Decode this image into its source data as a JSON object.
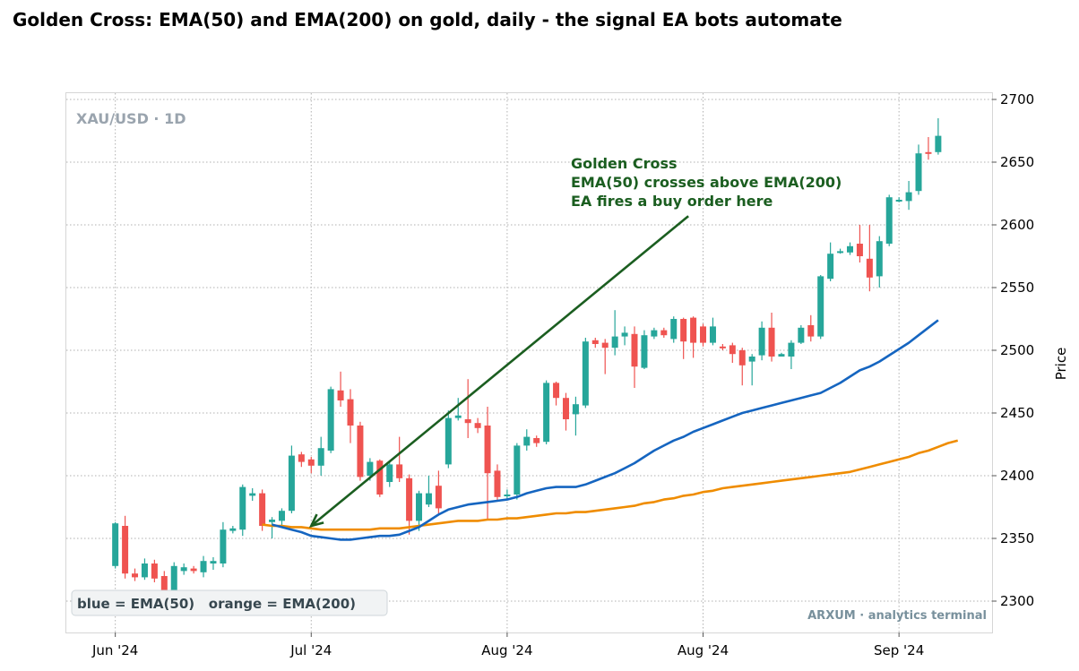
{
  "chart_data": {
    "type": "candlestick",
    "title": "Golden Cross: EMA(50) and EMA(200) on gold, daily - the signal EA bots automate",
    "ylabel": "Price",
    "xlabel": "",
    "ylim": [
      2275,
      2705
    ],
    "yticks": [
      2300,
      2350,
      2400,
      2450,
      2500,
      2550,
      2600,
      2650,
      2700
    ],
    "xticks": [
      {
        "day": 0,
        "label": "Jun '24"
      },
      {
        "day": 20,
        "label": "Jul '24"
      },
      {
        "day": 40,
        "label": "Aug '24"
      },
      {
        "day": 60,
        "label": "Aug '24"
      },
      {
        "day": 80,
        "label": "Sep '24"
      }
    ],
    "xlim": [
      -5,
      89.5
    ],
    "grid": true,
    "symbol": "XAU/USD · 1D",
    "colors": {
      "up": "#26a69a",
      "down": "#ef5350",
      "ema50": "#1565c0",
      "ema200": "#ef8c00",
      "annotation": "#1b5e20"
    },
    "annotation": {
      "lines": [
        "Golden Cross",
        "EMA(50) crosses above EMA(200)",
        "EA fires a buy order here"
      ],
      "text_at": [
        46.5,
        2645
      ],
      "target": [
        20,
        2360
      ],
      "tail": [
        58.5,
        2607
      ]
    },
    "legend_text": "blue = EMA(50)   orange = EMA(200)",
    "legend_placement": "bottom-left",
    "footer": "ARXUM · analytics terminal",
    "candles": [
      [
        2328,
        2362,
        2326,
        2363
      ],
      [
        2360,
        2322,
        2318,
        2368
      ],
      [
        2322,
        2319,
        2316,
        2326
      ],
      [
        2319,
        2330,
        2317,
        2334
      ],
      [
        2330,
        2318,
        2315,
        2333
      ],
      [
        2320,
        2307,
        2303,
        2324
      ],
      [
        2307,
        2328,
        2304,
        2331
      ],
      [
        2324,
        2327,
        2321,
        2330
      ],
      [
        2326,
        2324,
        2322,
        2328
      ],
      [
        2323,
        2332,
        2319,
        2336
      ],
      [
        2330,
        2332,
        2325,
        2335
      ],
      [
        2330,
        2357,
        2327,
        2363
      ],
      [
        2356,
        2358,
        2354,
        2360
      ],
      [
        2357,
        2391,
        2352,
        2393
      ],
      [
        2384,
        2386,
        2380,
        2390
      ],
      [
        2386,
        2360,
        2356,
        2389
      ],
      [
        2363,
        2365,
        2350,
        2367
      ],
      [
        2364,
        2372,
        2360,
        2374
      ],
      [
        2372,
        2416,
        2370,
        2424
      ],
      [
        2417,
        2411,
        2407,
        2419
      ],
      [
        2413,
        2408,
        2402,
        2415
      ],
      [
        2408,
        2422,
        2400,
        2431
      ],
      [
        2420,
        2469,
        2418,
        2471
      ],
      [
        2468,
        2460,
        2455,
        2483
      ],
      [
        2461,
        2440,
        2426,
        2469
      ],
      [
        2440,
        2399,
        2396,
        2443
      ],
      [
        2400,
        2411,
        2396,
        2414
      ],
      [
        2412,
        2385,
        2383,
        2413
      ],
      [
        2395,
        2409,
        2391,
        2412
      ],
      [
        2409,
        2398,
        2395,
        2431
      ],
      [
        2398,
        2364,
        2353,
        2401
      ],
      [
        2364,
        2386,
        2356,
        2388
      ],
      [
        2377,
        2386,
        2375,
        2400
      ],
      [
        2392,
        2374,
        2370,
        2404
      ],
      [
        2409,
        2446,
        2406,
        2452
      ],
      [
        2446,
        2448,
        2444,
        2462
      ],
      [
        2445,
        2442,
        2430,
        2477
      ],
      [
        2442,
        2438,
        2434,
        2446
      ],
      [
        2440,
        2402,
        2365,
        2455
      ],
      [
        2404,
        2383,
        2380,
        2409
      ],
      [
        2384,
        2385,
        2381,
        2389
      ],
      [
        2385,
        2424,
        2381,
        2426
      ],
      [
        2424,
        2431,
        2420,
        2437
      ],
      [
        2430,
        2426,
        2423,
        2432
      ],
      [
        2427,
        2474,
        2425,
        2476
      ],
      [
        2474,
        2462,
        2456,
        2475
      ],
      [
        2462,
        2445,
        2436,
        2466
      ],
      [
        2449,
        2457,
        2432,
        2463
      ],
      [
        2456,
        2507,
        2454,
        2510
      ],
      [
        2508,
        2505,
        2502,
        2510
      ],
      [
        2506,
        2502,
        2481,
        2509
      ],
      [
        2502,
        2511,
        2496,
        2532
      ],
      [
        2511,
        2514,
        2504,
        2519
      ],
      [
        2513,
        2487,
        2470,
        2519
      ],
      [
        2486,
        2512,
        2485,
        2516
      ],
      [
        2511,
        2516,
        2509,
        2518
      ],
      [
        2516,
        2512,
        2510,
        2518
      ],
      [
        2509,
        2525,
        2506,
        2527
      ],
      [
        2525,
        2507,
        2493,
        2526
      ],
      [
        2526,
        2506,
        2494,
        2527
      ],
      [
        2519,
        2506,
        2503,
        2521
      ],
      [
        2506,
        2519,
        2504,
        2526
      ],
      [
        2503,
        2502,
        2500,
        2505
      ],
      [
        2504,
        2497,
        2490,
        2506
      ],
      [
        2500,
        2488,
        2472,
        2502
      ],
      [
        2491,
        2495,
        2472,
        2497
      ],
      [
        2496,
        2518,
        2492,
        2523
      ],
      [
        2518,
        2495,
        2491,
        2530
      ],
      [
        2495,
        2497,
        2495,
        2498
      ],
      [
        2495,
        2506,
        2485,
        2508
      ],
      [
        2506,
        2518,
        2505,
        2520
      ],
      [
        2520,
        2511,
        2507,
        2528
      ],
      [
        2511,
        2559,
        2509,
        2560
      ],
      [
        2557,
        2577,
        2555,
        2586
      ],
      [
        2579,
        2579,
        2577,
        2581
      ],
      [
        2578,
        2583,
        2576,
        2586
      ],
      [
        2585,
        2575,
        2570,
        2600
      ],
      [
        2573,
        2558,
        2547,
        2600
      ],
      [
        2559,
        2587,
        2550,
        2591
      ],
      [
        2585,
        2622,
        2583,
        2624
      ],
      [
        2620,
        2620,
        2618,
        2622
      ],
      [
        2619,
        2626,
        2612,
        2635
      ],
      [
        2627,
        2657,
        2624,
        2664
      ],
      [
        2658,
        2657,
        2652,
        2670
      ],
      [
        2658,
        2671,
        2656,
        2685
      ]
    ],
    "ema50": [
      2361,
      2359,
      2357,
      2355,
      2352,
      2351,
      2350,
      2349,
      2349,
      2350,
      2351,
      2352,
      2352,
      2353,
      2356,
      2359,
      2364,
      2369,
      2373,
      2375,
      2377,
      2378,
      2379,
      2380,
      2381,
      2383,
      2386,
      2388,
      2390,
      2391,
      2391,
      2391,
      2393,
      2396,
      2399,
      2402,
      2406,
      2410,
      2415,
      2420,
      2424,
      2428,
      2431,
      2435,
      2438,
      2441,
      2444,
      2447,
      2450,
      2452,
      2454,
      2456,
      2458,
      2460,
      2462,
      2464,
      2466,
      2470,
      2474,
      2479,
      2484,
      2487,
      2491,
      2496,
      2501,
      2506,
      2512,
      2518,
      2524
    ],
    "ema200": [
      2361,
      2360,
      2360,
      2359,
      2359,
      2358,
      2357,
      2357,
      2357,
      2357,
      2357,
      2357,
      2358,
      2358,
      2358,
      2359,
      2360,
      2361,
      2362,
      2363,
      2364,
      2364,
      2364,
      2365,
      2365,
      2366,
      2366,
      2367,
      2368,
      2369,
      2370,
      2370,
      2371,
      2371,
      2372,
      2373,
      2374,
      2375,
      2376,
      2378,
      2379,
      2381,
      2382,
      2384,
      2385,
      2387,
      2388,
      2390,
      2391,
      2392,
      2393,
      2394,
      2395,
      2396,
      2397,
      2398,
      2399,
      2400,
      2401,
      2402,
      2403,
      2405,
      2407,
      2409,
      2411,
      2413,
      2415,
      2418,
      2420,
      2423,
      2426,
      2428
    ],
    "ema50_start_day": 16,
    "ema200_start_day": 15
  }
}
